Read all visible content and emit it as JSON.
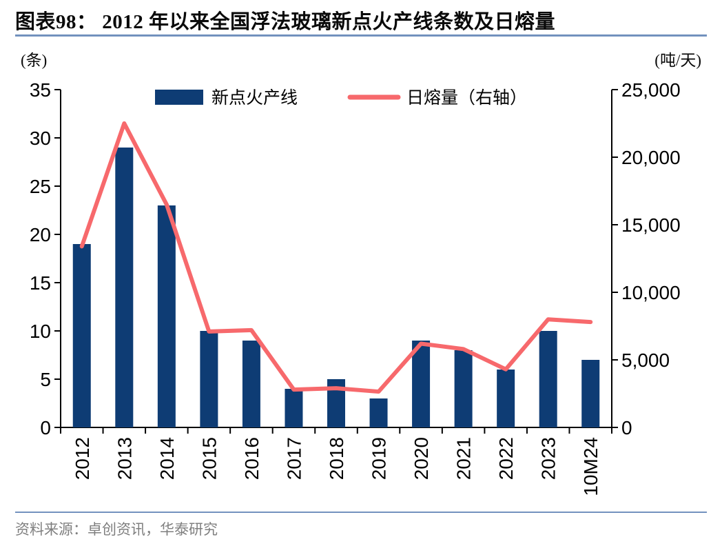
{
  "header": {
    "title": "图表98：  2012 年以来全国浮法玻璃新点火产线条数及日熔量"
  },
  "footer": {
    "source": "资料来源：卓创资讯，华泰研究"
  },
  "colors": {
    "bar": "#0E3C74",
    "line": "#F7696C",
    "divider": "#7291BE",
    "source_text": "#7F7F7F",
    "axis": "#000000"
  },
  "chart_data": {
    "type": "bar+line",
    "categories": [
      "2012",
      "2013",
      "2014",
      "2015",
      "2016",
      "2017",
      "2018",
      "2019",
      "2020",
      "2021",
      "2022",
      "2023",
      "10M24"
    ],
    "series": [
      {
        "name": "新点火产线",
        "type": "bar",
        "axis": "left",
        "values": [
          19,
          29,
          23,
          10,
          9,
          4,
          5,
          3,
          9,
          8,
          6,
          10,
          7
        ]
      },
      {
        "name": "日熔量（右轴）",
        "type": "line",
        "axis": "right",
        "values": [
          13400,
          22500,
          16500,
          7100,
          7200,
          2800,
          2900,
          2650,
          6200,
          5800,
          4300,
          8000,
          7800
        ]
      }
    ],
    "left_axis": {
      "unit": "(条)",
      "min": 0,
      "max": 35,
      "tick_step": 5
    },
    "right_axis": {
      "unit": "(吨/天)",
      "min": 0,
      "max": 25000,
      "tick_step": 5000
    },
    "legend_position": "top-center",
    "grid": false,
    "x_tick_label_rotation": -90
  }
}
